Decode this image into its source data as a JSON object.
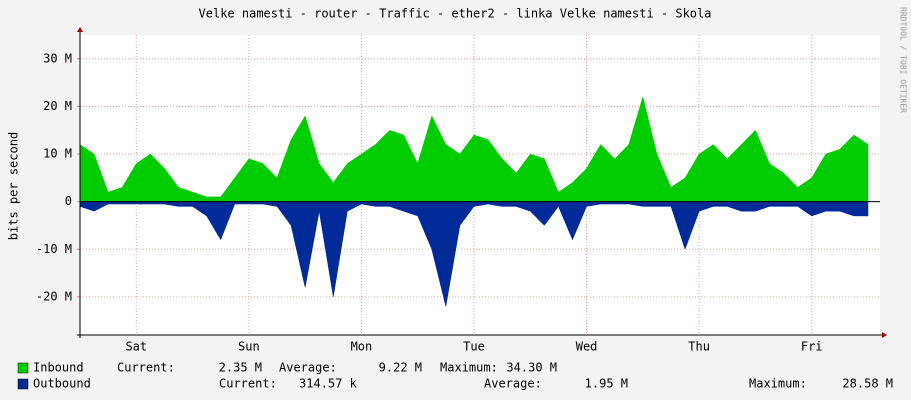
{
  "chart_data": {
    "type": "area",
    "title": "Velke namesti - router - Traffic - ether2 - linka Velke namesti - Skola",
    "y_label": "bits per second",
    "watermark": "RRDTOOL / TOBI OETIKER",
    "categories": [
      null,
      null,
      null,
      null,
      "Sat",
      null,
      null,
      null,
      null,
      null,
      null,
      null,
      "Sun",
      null,
      null,
      null,
      null,
      null,
      null,
      null,
      "Mon",
      null,
      null,
      null,
      null,
      null,
      null,
      null,
      "Tue",
      null,
      null,
      null,
      null,
      null,
      null,
      null,
      "Wed",
      null,
      null,
      null,
      null,
      null,
      null,
      null,
      "Thu",
      null,
      null,
      null,
      null,
      null,
      null,
      null,
      "Fri",
      null,
      null,
      null,
      null
    ],
    "ylim": [
      -28,
      35
    ],
    "yticks": [
      {
        "value": -20,
        "label": "-20 M"
      },
      {
        "value": -10,
        "label": "-10 M"
      },
      0,
      {
        "value": 10,
        "label": "10 M"
      },
      {
        "value": 20,
        "label": "20 M"
      },
      {
        "value": 30,
        "label": "30 M"
      }
    ],
    "grid": true,
    "series": [
      {
        "name": "Inbound",
        "color": "#00cc00",
        "values": [
          12,
          10,
          2,
          3,
          8,
          10,
          7,
          3,
          2,
          1,
          1,
          5,
          9,
          8,
          5,
          13,
          18,
          8,
          4,
          8,
          10,
          12,
          15,
          14,
          8,
          18,
          12,
          10,
          14,
          13,
          9,
          6,
          10,
          9,
          2,
          4,
          7,
          12,
          9,
          12,
          22,
          10,
          3,
          5,
          10,
          12,
          9,
          12,
          15,
          8,
          6,
          3,
          5,
          10,
          11,
          14,
          12
        ],
        "stats": [
          {
            "label": "Current:",
            "value": "2.35 M"
          },
          {
            "label": "Average:",
            "value": "9.22 M"
          },
          {
            "label": "Maximum:",
            "value": "34.30 M"
          }
        ]
      },
      {
        "name": "Outbound",
        "color": "#002a97",
        "values": [
          -1,
          -2,
          -0.5,
          -0.5,
          -0.5,
          -0.5,
          -0.5,
          -1,
          -1,
          -3,
          -8,
          -0.5,
          -0.5,
          -0.5,
          -1,
          -5,
          -18,
          -2,
          -20,
          -2,
          -0.5,
          -1,
          -1,
          -2,
          -3,
          -10,
          -22,
          -5,
          -1,
          -0.5,
          -1,
          -1,
          -2,
          -5,
          -1,
          -8,
          -1,
          -0.5,
          -0.5,
          -0.5,
          -1,
          -1,
          -1,
          -10,
          -2,
          -1,
          -1,
          -2,
          -2,
          -1,
          -1,
          -1,
          -3,
          -2,
          -2,
          -3,
          -3
        ],
        "stats": [
          {
            "label": "Current:",
            "value": "314.57 k"
          },
          {
            "label": "Average:",
            "value": "1.95 M"
          },
          {
            "label": "Maximum:",
            "value": "28.58 M"
          }
        ]
      }
    ]
  }
}
